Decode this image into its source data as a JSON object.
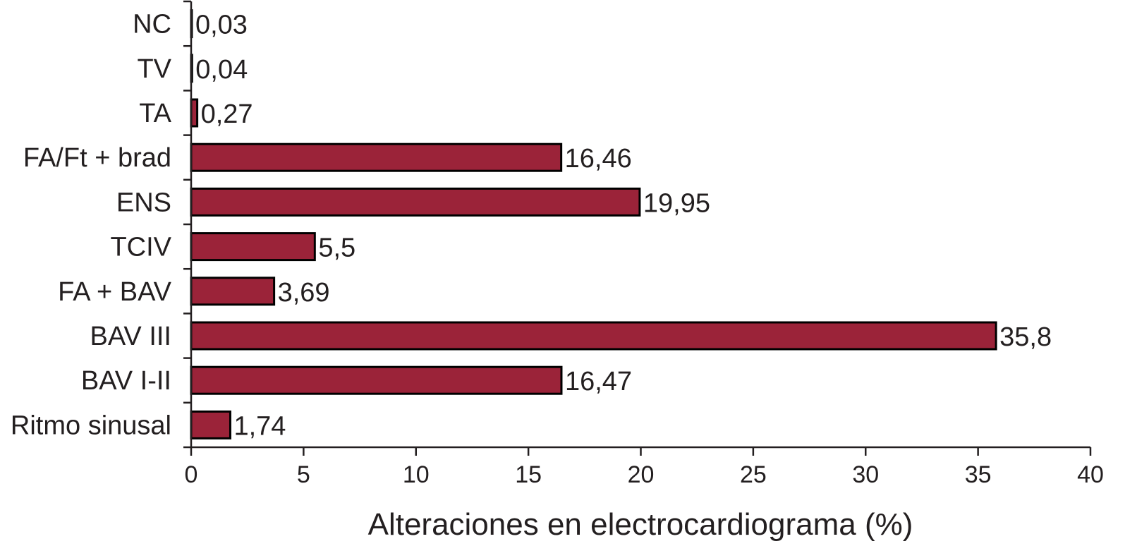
{
  "chart_data": {
    "type": "bar",
    "orientation": "horizontal",
    "categories": [
      "NC",
      "TV",
      "TA",
      "FA/Ft + brad",
      "ENS",
      "TCIV",
      "FA + BAV",
      "BAV III",
      "BAV I-II",
      "Ritmo sinusal"
    ],
    "values": [
      0.03,
      0.04,
      0.27,
      16.46,
      19.95,
      5.5,
      3.69,
      35.8,
      16.47,
      1.74
    ],
    "value_labels": [
      "0,03",
      "0,04",
      "0,27",
      "16,46",
      "19,95",
      "5,5",
      "3,69",
      "35,8",
      "16,47",
      "1,74"
    ],
    "xlabel": "Alteraciones en electrocardiograma (%)",
    "xlim": [
      0,
      40
    ],
    "xticks": [
      0,
      5,
      10,
      15,
      20,
      25,
      30,
      35,
      40
    ],
    "xtick_labels": [
      "0",
      "5",
      "10",
      "15",
      "20",
      "25",
      "30",
      "35",
      "40"
    ],
    "bar_color": "#9b2339",
    "grid": false,
    "legend": "none"
  }
}
